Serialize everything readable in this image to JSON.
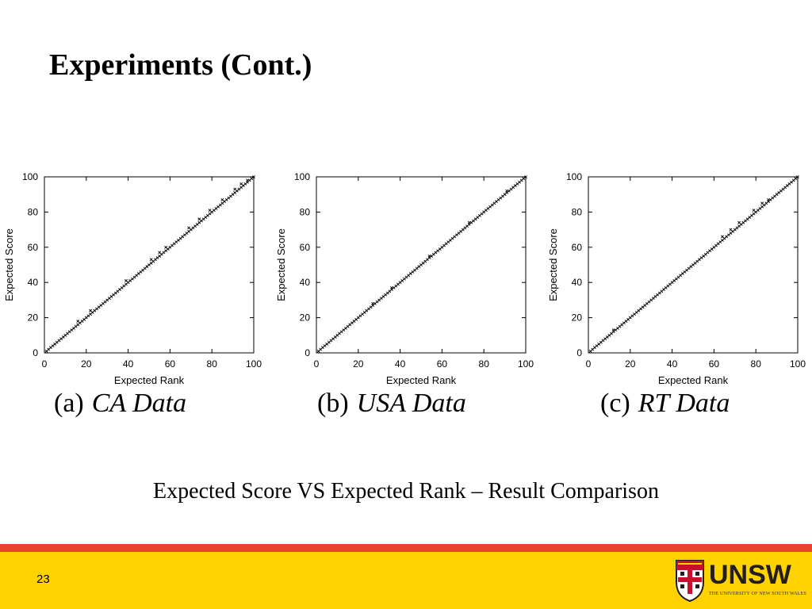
{
  "slide": {
    "title": "Experiments (Cont.)",
    "subtitle": "Expected Score VS Expected Rank – Result Comparison",
    "page_number": "23"
  },
  "colors": {
    "footer_red": "#e8432b",
    "footer_yellow": "#ffd200",
    "logo_text": "#231f20",
    "plot_mark": "#000000"
  },
  "logo": {
    "name": "UNSW",
    "subtitle": "THE UNIVERSITY OF NEW SOUTH WALES",
    "icon": "unsw-crest-icon"
  },
  "captions": [
    {
      "label": "(a)",
      "name": "CA Data"
    },
    {
      "label": "(b)",
      "name": "USA Data"
    },
    {
      "label": "(c)",
      "name": "RT Data"
    }
  ],
  "chart_data": [
    {
      "type": "scatter",
      "title": "",
      "xlabel": "Expected Rank",
      "ylabel": "Expected Score",
      "xlim": [
        0,
        100
      ],
      "ylim": [
        0,
        100
      ],
      "xticks": [
        0,
        20,
        40,
        60,
        80,
        100
      ],
      "yticks": [
        0,
        20,
        40,
        60,
        80,
        100
      ],
      "grid": false,
      "legend": "none",
      "marker": "x",
      "series": [
        {
          "x_range": [
            1,
            100
          ],
          "step": 1,
          "relation": "y = x"
        }
      ],
      "outliers": [
        {
          "x": 16,
          "y": 18
        },
        {
          "x": 22,
          "y": 24
        },
        {
          "x": 39,
          "y": 41
        },
        {
          "x": 51,
          "y": 53
        },
        {
          "x": 55,
          "y": 57
        },
        {
          "x": 58,
          "y": 60
        },
        {
          "x": 69,
          "y": 71
        },
        {
          "x": 74,
          "y": 76
        },
        {
          "x": 79,
          "y": 81
        },
        {
          "x": 85,
          "y": 87
        },
        {
          "x": 91,
          "y": 93
        },
        {
          "x": 94,
          "y": 96
        },
        {
          "x": 97,
          "y": 98
        }
      ]
    },
    {
      "type": "scatter",
      "title": "",
      "xlabel": "Expected Rank",
      "ylabel": "Expected Score",
      "xlim": [
        0,
        100
      ],
      "ylim": [
        0,
        100
      ],
      "xticks": [
        0,
        20,
        40,
        60,
        80,
        100
      ],
      "yticks": [
        0,
        20,
        40,
        60,
        80,
        100
      ],
      "grid": false,
      "legend": "none",
      "marker": "x",
      "series": [
        {
          "x_range": [
            1,
            100
          ],
          "step": 1,
          "relation": "y = x"
        }
      ],
      "outliers": [
        {
          "x": 27,
          "y": 28
        },
        {
          "x": 36,
          "y": 37
        },
        {
          "x": 54,
          "y": 55
        },
        {
          "x": 73,
          "y": 74
        },
        {
          "x": 91,
          "y": 92
        }
      ]
    },
    {
      "type": "scatter",
      "title": "",
      "xlabel": "Expected Rank",
      "ylabel": "Expected Score",
      "xlim": [
        0,
        100
      ],
      "ylim": [
        0,
        100
      ],
      "xticks": [
        0,
        20,
        40,
        60,
        80,
        100
      ],
      "yticks": [
        0,
        20,
        40,
        60,
        80,
        100
      ],
      "grid": false,
      "legend": "none",
      "marker": "x",
      "series": [
        {
          "x_range": [
            1,
            100
          ],
          "step": 1,
          "relation": "y = x"
        }
      ],
      "outliers": [
        {
          "x": 12,
          "y": 13
        },
        {
          "x": 64,
          "y": 66
        },
        {
          "x": 68,
          "y": 70
        },
        {
          "x": 72,
          "y": 74
        },
        {
          "x": 79,
          "y": 81
        },
        {
          "x": 83,
          "y": 85
        },
        {
          "x": 86,
          "y": 87
        }
      ]
    }
  ]
}
